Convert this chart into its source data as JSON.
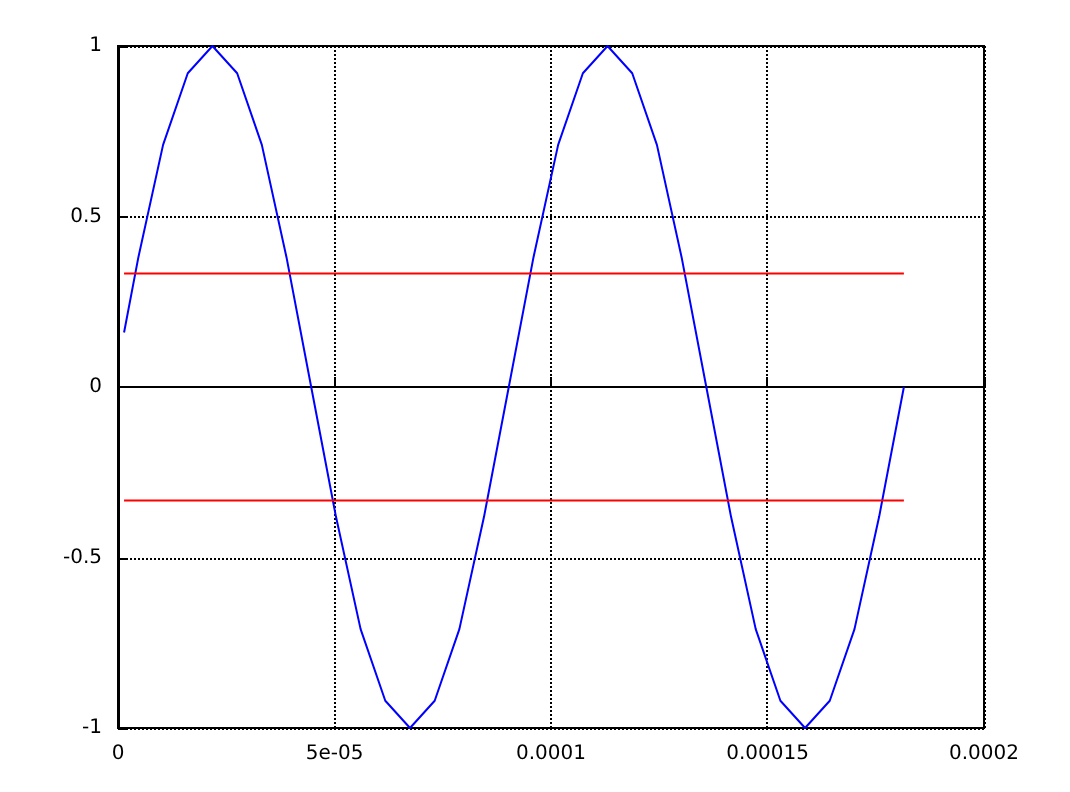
{
  "chart_data": {
    "type": "line",
    "xlim": [
      0,
      0.0002
    ],
    "ylim": [
      -1,
      1
    ],
    "xticks": [
      0,
      {
        "value": 5e-05,
        "label": "5e-05"
      },
      {
        "value": 0.0001,
        "label": "0.0001"
      },
      {
        "value": 0.00015,
        "label": "0.00015"
      },
      {
        "value": 0.0002,
        "label": "0.0002"
      }
    ],
    "yticks": [
      -1,
      -0.5,
      0,
      0.5,
      1
    ],
    "grid": true,
    "marker": "none",
    "line_style": "solid",
    "series": [
      {
        "color": "#0000ff",
        "x": [
          1.4e-06,
          4.7e-06,
          1.041e-05,
          1.611e-05,
          2.181e-05,
          2.752e-05,
          3.322e-05,
          3.892e-05,
          4.462e-05,
          5.033e-05,
          5.603e-05,
          6.173e-05,
          6.744e-05,
          7.314e-05,
          7.884e-05,
          8.454e-05,
          9.025e-05,
          9.595e-05,
          0.00010165,
          0.00010736,
          0.00011306,
          0.00011876,
          0.00012446,
          0.00013017,
          0.00013587,
          0.00014157,
          0.00014728,
          0.00015298,
          0.00015868,
          0.00016438,
          0.00017009,
          0.00017579,
          0.0001815
        ],
        "values": [
          0.16,
          0.38,
          0.71,
          0.92,
          1,
          0.92,
          0.71,
          0.38,
          0,
          -0.38,
          -0.71,
          -0.92,
          -1,
          -0.92,
          -0.71,
          -0.38,
          0,
          0.38,
          0.71,
          0.92,
          1,
          0.92,
          0.71,
          0.38,
          0,
          -0.38,
          -0.71,
          -0.92,
          -1,
          -0.92,
          -0.71,
          -0.38,
          0
        ]
      },
      {
        "color": "#ff0000",
        "x": [
          1.4e-06,
          0.0001815
        ],
        "values": [
          0.333,
          0.333
        ]
      },
      {
        "color": "#ff0000",
        "x": [
          1.4e-06,
          0.0001815
        ],
        "values": [
          -0.333,
          -0.333
        ]
      }
    ]
  }
}
